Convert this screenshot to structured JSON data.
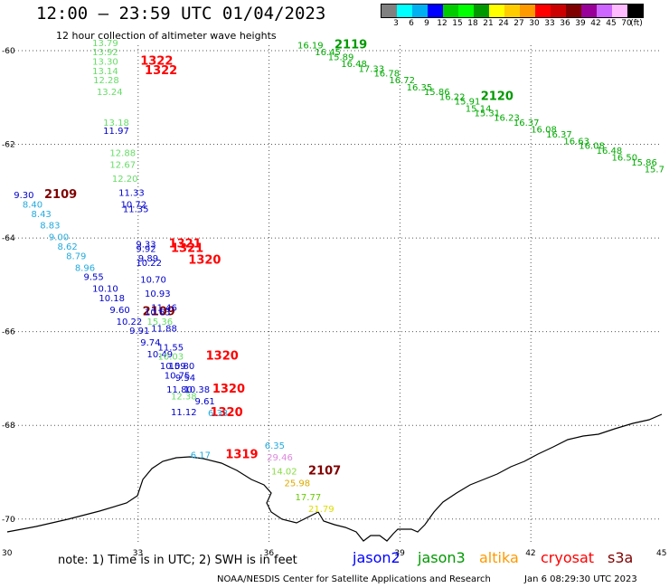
{
  "header": {
    "title": "12:00 — 23:59 UTC 01/04/2023",
    "subtitle": "12 hour collection of altimeter wave heights"
  },
  "legend": {
    "colors": [
      "#808080",
      "#00ffff",
      "#00b0f0",
      "#0000ff",
      "#00cc00",
      "#00ff00",
      "#009900",
      "#ffff00",
      "#ffcc00",
      "#ff9900",
      "#ff0000",
      "#cc0000",
      "#800000",
      "#990099",
      "#cc66ff",
      "#ffbbff",
      "#000000"
    ],
    "labels": [
      "3",
      "6",
      "9",
      "12",
      "15",
      "18",
      "21",
      "24",
      "27",
      "30",
      "33",
      "36",
      "39",
      "42",
      "45",
      "70",
      "(ft)"
    ]
  },
  "axes": {
    "lat_labels": [
      "-60",
      "-62",
      "-64",
      "-66",
      "-68",
      "-70"
    ],
    "lon_labels": [
      "30",
      "33",
      "36",
      "39",
      "42",
      "45"
    ]
  },
  "track_labels": [
    {
      "text": "2119",
      "color": "#009900",
      "lon": 37.5,
      "lat": -59.95
    },
    {
      "text": "2120",
      "color": "#009900",
      "lon": 40.85,
      "lat": -61.05
    },
    {
      "text": "1322",
      "color": "#ff0000",
      "lon": 33.05,
      "lat": -60.3
    },
    {
      "text": "1322",
      "color": "#ff0000",
      "lon": 33.15,
      "lat": -60.5
    },
    {
      "text": "2109",
      "color": "#800000",
      "lon": 30.85,
      "lat": -63.15
    },
    {
      "text": "1321",
      "color": "#ff0000",
      "lon": 33.7,
      "lat": -64.2
    },
    {
      "text": "1321",
      "color": "#ff0000",
      "lon": 33.75,
      "lat": -64.3
    },
    {
      "text": "1320",
      "color": "#ff0000",
      "lon": 34.15,
      "lat": -64.55
    },
    {
      "text": "2109",
      "color": "#800000",
      "lon": 33.1,
      "lat": -65.65
    },
    {
      "text": "1320",
      "color": "#ff0000",
      "lon": 34.55,
      "lat": -66.6
    },
    {
      "text": "1320",
      "color": "#ff0000",
      "lon": 34.7,
      "lat": -67.3
    },
    {
      "text": "1320",
      "color": "#ff0000",
      "lon": 34.65,
      "lat": -67.8
    },
    {
      "text": "1319",
      "color": "#ff0000",
      "lon": 35.0,
      "lat": -68.7
    },
    {
      "text": "2107",
      "color": "#800000",
      "lon": 36.9,
      "lat": -69.05
    }
  ],
  "wave_heights": [
    {
      "v": "13.79",
      "c": "#66dd66",
      "lon": 31.95,
      "lat": -59.9
    },
    {
      "v": "13.92",
      "c": "#66dd66",
      "lon": 31.95,
      "lat": -60.1
    },
    {
      "v": "13.30",
      "c": "#66dd66",
      "lon": 31.95,
      "lat": -60.3
    },
    {
      "v": "13.14",
      "c": "#66dd66",
      "lon": 31.95,
      "lat": -60.5
    },
    {
      "v": "12.28",
      "c": "#66dd66",
      "lon": 31.97,
      "lat": -60.7
    },
    {
      "v": "13.24",
      "c": "#66dd66",
      "lon": 32.05,
      "lat": -60.95
    },
    {
      "v": "13.18",
      "c": "#66dd66",
      "lon": 32.2,
      "lat": -61.6
    },
    {
      "v": "11.97",
      "c": "#0000cc",
      "lon": 32.2,
      "lat": -61.78
    },
    {
      "v": "12.88",
      "c": "#66dd66",
      "lon": 32.35,
      "lat": -62.25
    },
    {
      "v": "12.67",
      "c": "#66dd66",
      "lon": 32.35,
      "lat": -62.5
    },
    {
      "v": "12.20",
      "c": "#66dd66",
      "lon": 32.4,
      "lat": -62.8
    },
    {
      "v": "11.33",
      "c": "#0000cc",
      "lon": 32.55,
      "lat": -63.1
    },
    {
      "v": "10.72",
      "c": "#0000cc",
      "lon": 32.6,
      "lat": -63.35
    },
    {
      "v": "11.35",
      "c": "#0000cc",
      "lon": 32.65,
      "lat": -63.45
    },
    {
      "v": "9.33",
      "c": "#0000cc",
      "lon": 32.95,
      "lat": -64.2
    },
    {
      "v": "9.92",
      "c": "#0000cc",
      "lon": 32.95,
      "lat": -64.3
    },
    {
      "v": "9.89",
      "c": "#0000cc",
      "lon": 33.0,
      "lat": -64.5
    },
    {
      "v": "10.22",
      "c": "#0000cc",
      "lon": 32.95,
      "lat": -64.6
    },
    {
      "v": "10.70",
      "c": "#0000cc",
      "lon": 33.05,
      "lat": -64.95
    },
    {
      "v": "10.93",
      "c": "#0000cc",
      "lon": 33.15,
      "lat": -65.25
    },
    {
      "v": "11.46",
      "c": "#0000cc",
      "lon": 33.3,
      "lat": -65.55
    },
    {
      "v": "10.63",
      "c": "#0000cc",
      "lon": 33.15,
      "lat": -65.65
    },
    {
      "v": "15.36",
      "c": "#66dd66",
      "lon": 33.2,
      "lat": -65.85
    },
    {
      "v": "11.88",
      "c": "#0000cc",
      "lon": 33.3,
      "lat": -66.0
    },
    {
      "v": "11.55",
      "c": "#0000cc",
      "lon": 33.45,
      "lat": -66.4
    },
    {
      "v": "10.49",
      "c": "#0000cc",
      "lon": 33.2,
      "lat": -66.55
    },
    {
      "v": "10.03",
      "c": "#66dd66",
      "lon": 33.45,
      "lat": -66.6
    },
    {
      "v": "10.59",
      "c": "#0000cc",
      "lon": 33.5,
      "lat": -66.8
    },
    {
      "v": "10.80",
      "c": "#0000cc",
      "lon": 33.7,
      "lat": -66.8
    },
    {
      "v": "10.75",
      "c": "#0000cc",
      "lon": 33.6,
      "lat": -67.0
    },
    {
      "v": "9.54",
      "c": "#0000cc",
      "lon": 33.85,
      "lat": -67.05
    },
    {
      "v": "11.80",
      "c": "#0000cc",
      "lon": 33.65,
      "lat": -67.3
    },
    {
      "v": "10.38",
      "c": "#0000cc",
      "lon": 34.05,
      "lat": -67.3
    },
    {
      "v": "12.38",
      "c": "#66dd66",
      "lon": 33.75,
      "lat": -67.45
    },
    {
      "v": "9.61",
      "c": "#0000cc",
      "lon": 34.3,
      "lat": -67.55
    },
    {
      "v": "11.12",
      "c": "#0000cc",
      "lon": 33.75,
      "lat": -67.78
    },
    {
      "v": "6.33",
      "c": "#22aadd",
      "lon": 34.6,
      "lat": -67.8
    },
    {
      "v": "9.30",
      "c": "#0000cc",
      "lon": 30.15,
      "lat": -63.15
    },
    {
      "v": "8.40",
      "c": "#22aadd",
      "lon": 30.35,
      "lat": -63.35
    },
    {
      "v": "8.43",
      "c": "#22aadd",
      "lon": 30.55,
      "lat": -63.55
    },
    {
      "v": "8.83",
      "c": "#22aadd",
      "lon": 30.75,
      "lat": -63.8
    },
    {
      "v": "9.00",
      "c": "#22aadd",
      "lon": 30.95,
      "lat": -64.05
    },
    {
      "v": "8.62",
      "c": "#22aadd",
      "lon": 31.15,
      "lat": -64.25
    },
    {
      "v": "8.79",
      "c": "#22aadd",
      "lon": 31.35,
      "lat": -64.45
    },
    {
      "v": "8.96",
      "c": "#22aadd",
      "lon": 31.55,
      "lat": -64.7
    },
    {
      "v": "9.55",
      "c": "#0000cc",
      "lon": 31.75,
      "lat": -64.9
    },
    {
      "v": "10.10",
      "c": "#0000cc",
      "lon": 31.95,
      "lat": -65.15
    },
    {
      "v": "10.18",
      "c": "#0000cc",
      "lon": 32.1,
      "lat": -65.35
    },
    {
      "v": "9.60",
      "c": "#0000cc",
      "lon": 32.35,
      "lat": -65.6
    },
    {
      "v": "10.22",
      "c": "#0000cc",
      "lon": 32.5,
      "lat": -65.85
    },
    {
      "v": "9.91",
      "c": "#0000cc",
      "lon": 32.8,
      "lat": -66.05
    },
    {
      "v": "9.74",
      "c": "#0000cc",
      "lon": 33.05,
      "lat": -66.3
    },
    {
      "v": "16.19",
      "c": "#00aa00",
      "lon": 36.65,
      "lat": -59.95
    },
    {
      "v": "16.45",
      "c": "#00aa00",
      "lon": 37.05,
      "lat": -60.1
    },
    {
      "v": "15.89",
      "c": "#00aa00",
      "lon": 37.35,
      "lat": -60.2
    },
    {
      "v": "16.48",
      "c": "#00aa00",
      "lon": 37.65,
      "lat": -60.35
    },
    {
      "v": "17.33",
      "c": "#00aa00",
      "lon": 38.05,
      "lat": -60.45
    },
    {
      "v": "16.78",
      "c": "#00aa00",
      "lon": 38.4,
      "lat": -60.55
    },
    {
      "v": "16.72",
      "c": "#00aa00",
      "lon": 38.75,
      "lat": -60.7
    },
    {
      "v": "16.35",
      "c": "#00aa00",
      "lon": 39.15,
      "lat": -60.85
    },
    {
      "v": "15.86",
      "c": "#00aa00",
      "lon": 39.55,
      "lat": -60.95
    },
    {
      "v": "16.22",
      "c": "#00aa00",
      "lon": 39.9,
      "lat": -61.05
    },
    {
      "v": "15.91",
      "c": "#00aa00",
      "lon": 40.25,
      "lat": -61.15
    },
    {
      "v": "15.14",
      "c": "#00aa00",
      "lon": 40.5,
      "lat": -61.3
    },
    {
      "v": "15.31",
      "c": "#00aa00",
      "lon": 40.7,
      "lat": -61.4
    },
    {
      "v": "16.23",
      "c": "#00aa00",
      "lon": 41.15,
      "lat": -61.5
    },
    {
      "v": "16.37",
      "c": "#00aa00",
      "lon": 41.6,
      "lat": -61.6
    },
    {
      "v": "16.08",
      "c": "#00aa00",
      "lon": 42.0,
      "lat": -61.75
    },
    {
      "v": "16.37",
      "c": "#00aa00",
      "lon": 42.35,
      "lat": -61.85
    },
    {
      "v": "16.63",
      "c": "#00aa00",
      "lon": 42.75,
      "lat": -62.0
    },
    {
      "v": "16.08",
      "c": "#00aa00",
      "lon": 43.1,
      "lat": -62.1
    },
    {
      "v": "16.48",
      "c": "#00aa00",
      "lon": 43.5,
      "lat": -62.2
    },
    {
      "v": "16.50",
      "c": "#00aa00",
      "lon": 43.85,
      "lat": -62.35
    },
    {
      "v": "15.86",
      "c": "#00aa00",
      "lon": 44.3,
      "lat": -62.45
    },
    {
      "v": "15.7",
      "c": "#00aa00",
      "lon": 44.6,
      "lat": -62.6
    },
    {
      "v": "6.17",
      "c": "#22aadd",
      "lon": 34.2,
      "lat": -68.7
    },
    {
      "v": "6.35",
      "c": "#22aadd",
      "lon": 35.9,
      "lat": -68.5
    },
    {
      "v": "29.46",
      "c": "#dd88dd",
      "lon": 35.95,
      "lat": -68.75
    },
    {
      "v": "14.02",
      "c": "#88dd44",
      "lon": 36.05,
      "lat": -69.05
    },
    {
      "v": "25.98",
      "c": "#ddaa00",
      "lon": 36.35,
      "lat": -69.3
    },
    {
      "v": "17.77",
      "c": "#66cc00",
      "lon": 36.6,
      "lat": -69.6
    },
    {
      "v": "21.79",
      "c": "#dddd00",
      "lon": 36.9,
      "lat": -69.85
    }
  ],
  "footer": {
    "note": "note:  1) Time is in UTC;  2) SWH is in feet",
    "satellites": [
      {
        "name": "jason2",
        "color": "#0000ff"
      },
      {
        "name": "jason3",
        "color": "#009900"
      },
      {
        "name": "altika",
        "color": "#ff9900"
      },
      {
        "name": "cryosat",
        "color": "#ff0000"
      },
      {
        "name": "s3a",
        "color": "#800000"
      }
    ],
    "credit": "NOAA/NESDIS Center for Satellite Applications and Research",
    "timestamp": "Jan  6 08:29:30 UTC 2023"
  }
}
